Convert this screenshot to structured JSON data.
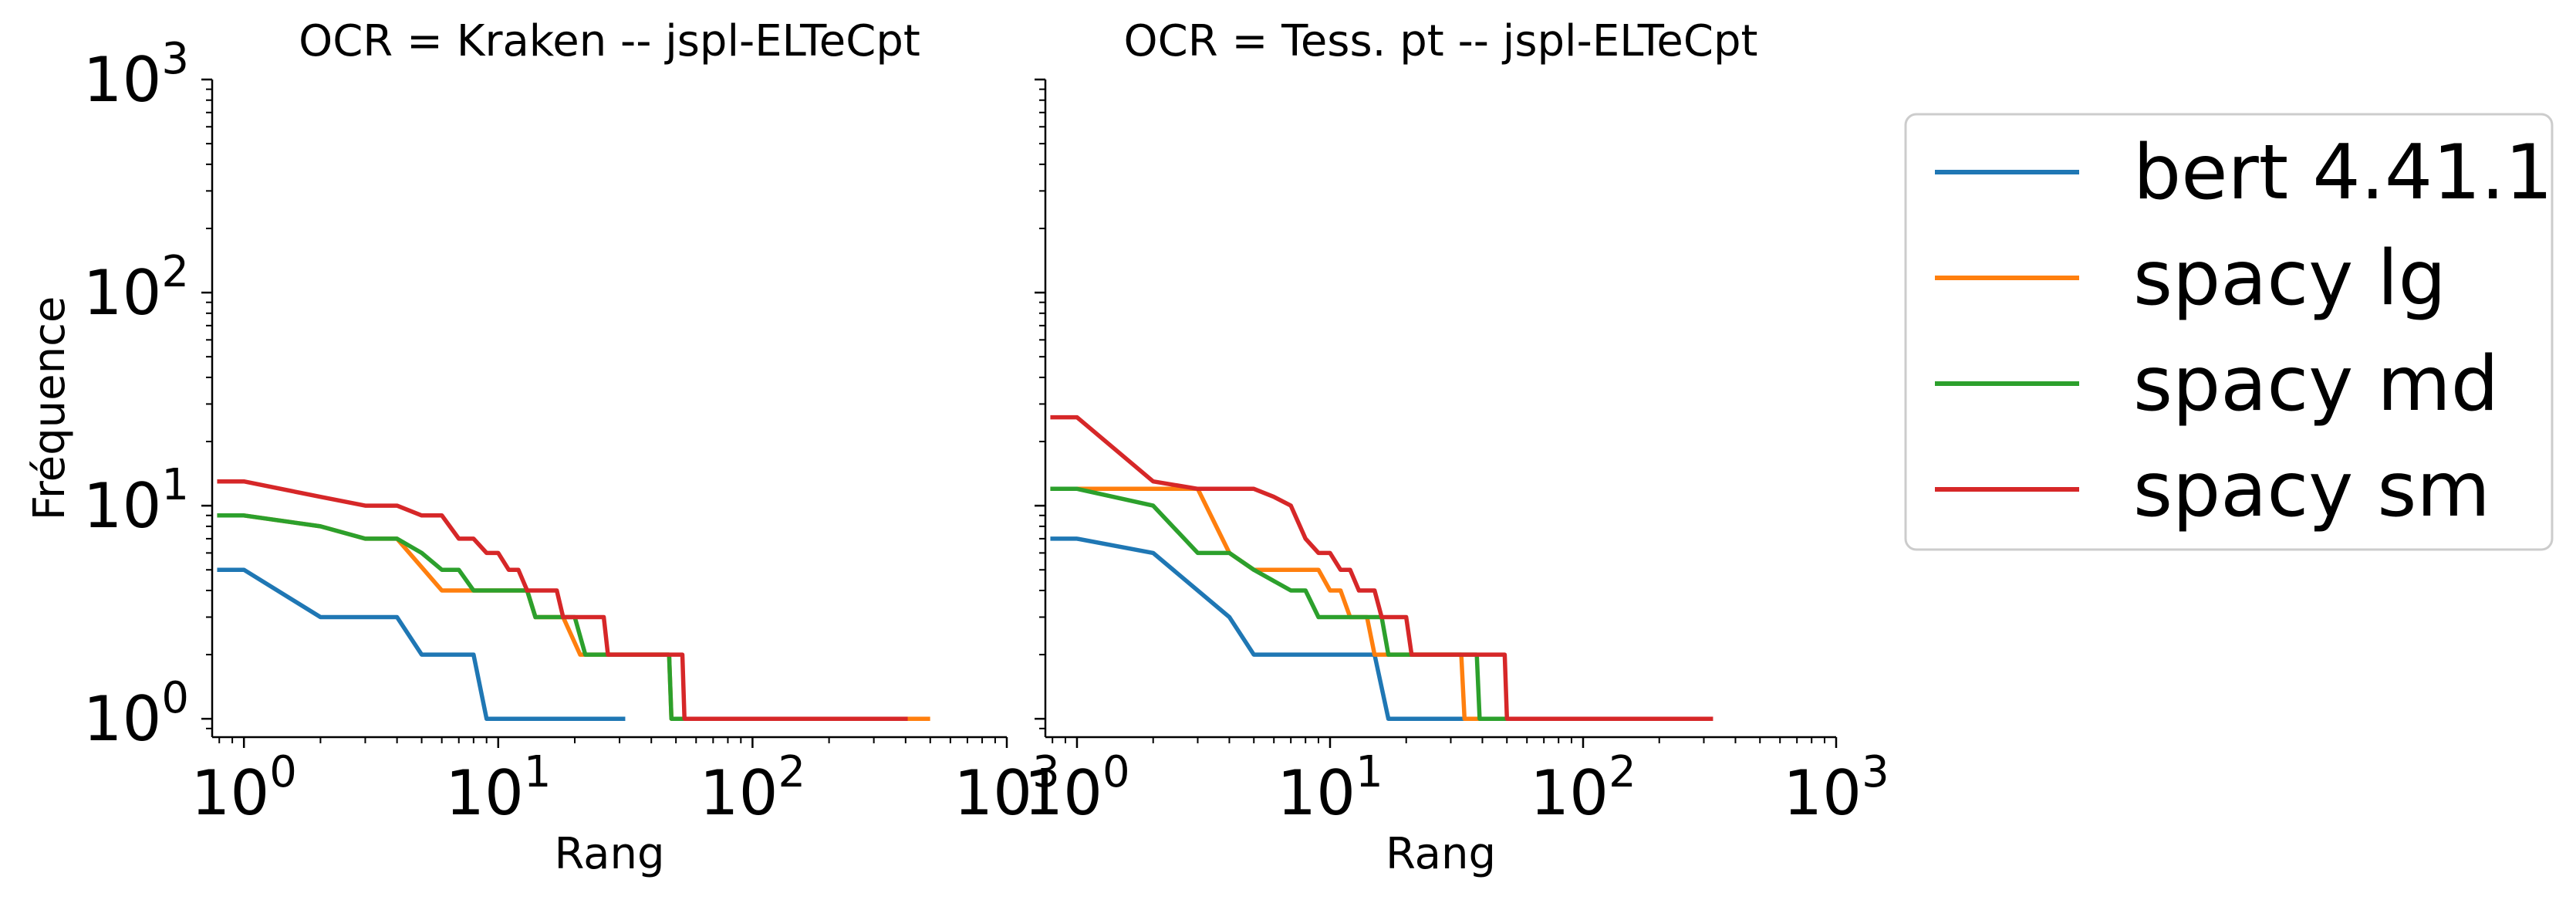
{
  "chart_data": [
    {
      "type": "line",
      "title": "OCR = Kraken -- jspl-ELTeCpt",
      "xlabel": "Rang",
      "ylabel": "Fréquence",
      "xscale": "log",
      "yscale": "log",
      "xlim": [
        0.75,
        1000
      ],
      "ylim": [
        0.82,
        1000
      ],
      "xticks": [
        {
          "base": "10",
          "exp": "0"
        },
        {
          "base": "10",
          "exp": "1"
        },
        {
          "base": "10",
          "exp": "2"
        },
        {
          "base": "10",
          "exp": "3"
        }
      ],
      "yticks": [
        {
          "base": "10",
          "exp": "0"
        },
        {
          "base": "10",
          "exp": "1"
        },
        {
          "base": "10",
          "exp": "2"
        },
        {
          "base": "10",
          "exp": "3"
        }
      ],
      "series": [
        {
          "name": "bert 4.41.1",
          "color": "#1f77b4",
          "points": [
            [
              0.8,
              5
            ],
            [
              1,
              5
            ],
            [
              2,
              3
            ],
            [
              4,
              3
            ],
            [
              5,
              2
            ],
            [
              8,
              2
            ],
            [
              9,
              1
            ],
            [
              31,
              1
            ]
          ]
        },
        {
          "name": "spacy lg",
          "color": "#ff7f0e",
          "points": [
            [
              0.8,
              9
            ],
            [
              1,
              9
            ],
            [
              2,
              8
            ],
            [
              3,
              7
            ],
            [
              4,
              7
            ],
            [
              6,
              4
            ],
            [
              8,
              4
            ],
            [
              10,
              4
            ],
            [
              13,
              4
            ],
            [
              14,
              3
            ],
            [
              18,
              3
            ],
            [
              21,
              2
            ],
            [
              47,
              2
            ],
            [
              48,
              1
            ],
            [
              100,
              1
            ],
            [
              200,
              1
            ],
            [
              490,
              1
            ]
          ]
        },
        {
          "name": "spacy md",
          "color": "#2ca02c",
          "points": [
            [
              0.8,
              9
            ],
            [
              1,
              9
            ],
            [
              2,
              8
            ],
            [
              3,
              7
            ],
            [
              4,
              7
            ],
            [
              5,
              6
            ],
            [
              6,
              5
            ],
            [
              7,
              5
            ],
            [
              8,
              4
            ],
            [
              13,
              4
            ],
            [
              14,
              3
            ],
            [
              20,
              3
            ],
            [
              22,
              2
            ],
            [
              47,
              2
            ],
            [
              48,
              1
            ],
            [
              100,
              1
            ],
            [
              200,
              1
            ]
          ]
        },
        {
          "name": "spacy sm",
          "color": "#d62728",
          "points": [
            [
              0.8,
              13
            ],
            [
              1,
              13
            ],
            [
              2,
              11
            ],
            [
              3,
              10
            ],
            [
              4,
              10
            ],
            [
              5,
              9
            ],
            [
              6,
              9
            ],
            [
              7,
              7
            ],
            [
              8,
              7
            ],
            [
              9,
              6
            ],
            [
              10,
              6
            ],
            [
              11,
              5
            ],
            [
              12,
              5
            ],
            [
              13,
              4
            ],
            [
              17,
              4
            ],
            [
              18,
              3
            ],
            [
              26,
              3
            ],
            [
              27,
              2
            ],
            [
              53,
              2
            ],
            [
              54,
              1
            ],
            [
              100,
              1
            ],
            [
              400,
              1
            ]
          ]
        }
      ]
    },
    {
      "type": "line",
      "title": "OCR = Tess. pt -- jspl-ELTeCpt",
      "xlabel": "Rang",
      "ylabel": "",
      "xscale": "log",
      "yscale": "log",
      "xlim": [
        0.75,
        1000
      ],
      "ylim": [
        0.82,
        1000
      ],
      "xticks": [
        {
          "base": "10",
          "exp": "0"
        },
        {
          "base": "10",
          "exp": "1"
        },
        {
          "base": "10",
          "exp": "2"
        },
        {
          "base": "10",
          "exp": "3"
        }
      ],
      "yticks": [],
      "series": [
        {
          "name": "bert 4.41.1",
          "color": "#1f77b4",
          "points": [
            [
              0.8,
              7
            ],
            [
              1,
              7
            ],
            [
              2,
              6
            ],
            [
              4,
              3
            ],
            [
              5,
              2
            ],
            [
              10,
              2
            ],
            [
              15,
              2
            ],
            [
              17,
              1
            ],
            [
              30,
              1
            ],
            [
              35,
              1
            ]
          ]
        },
        {
          "name": "spacy lg",
          "color": "#ff7f0e",
          "points": [
            [
              0.8,
              12
            ],
            [
              1,
              12
            ],
            [
              2,
              12
            ],
            [
              3,
              12
            ],
            [
              4,
              6
            ],
            [
              5,
              5
            ],
            [
              6,
              5
            ],
            [
              9,
              5
            ],
            [
              10,
              4
            ],
            [
              11,
              4
            ],
            [
              12,
              3
            ],
            [
              13,
              3
            ],
            [
              14,
              3
            ],
            [
              15,
              2
            ],
            [
              33,
              2
            ],
            [
              34,
              1
            ],
            [
              40,
              1
            ]
          ]
        },
        {
          "name": "spacy md",
          "color": "#2ca02c",
          "points": [
            [
              0.8,
              12
            ],
            [
              1,
              12
            ],
            [
              2,
              10
            ],
            [
              3,
              6
            ],
            [
              4,
              6
            ],
            [
              5,
              5
            ],
            [
              7,
              4
            ],
            [
              8,
              4
            ],
            [
              9,
              3
            ],
            [
              10,
              3
            ],
            [
              16,
              3
            ],
            [
              17,
              2
            ],
            [
              38,
              2
            ],
            [
              39,
              1
            ],
            [
              50,
              1
            ]
          ]
        },
        {
          "name": "spacy sm",
          "color": "#d62728",
          "points": [
            [
              0.8,
              26
            ],
            [
              1,
              26
            ],
            [
              2,
              13
            ],
            [
              3,
              12
            ],
            [
              4,
              12
            ],
            [
              5,
              12
            ],
            [
              6,
              11
            ],
            [
              7,
              10
            ],
            [
              8,
              7
            ],
            [
              9,
              6
            ],
            [
              10,
              6
            ],
            [
              11,
              5
            ],
            [
              12,
              5
            ],
            [
              13,
              4
            ],
            [
              14,
              4
            ],
            [
              15,
              4
            ],
            [
              16,
              3
            ],
            [
              20,
              3
            ],
            [
              21,
              2
            ],
            [
              49,
              2
            ],
            [
              50,
              1
            ],
            [
              100,
              1
            ],
            [
              320,
              1
            ]
          ]
        }
      ]
    }
  ],
  "legend": {
    "position": "right",
    "items": [
      {
        "name": "bert 4.41.1",
        "color": "#1f77b4"
      },
      {
        "name": "spacy lg",
        "color": "#ff7f0e"
      },
      {
        "name": "spacy md",
        "color": "#2ca02c"
      },
      {
        "name": "spacy sm",
        "color": "#d62728"
      }
    ]
  }
}
